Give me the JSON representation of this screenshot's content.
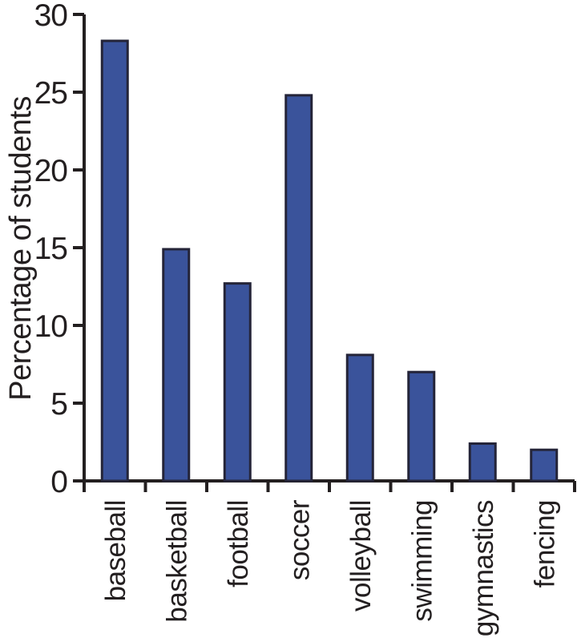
{
  "chart_data": {
    "type": "bar",
    "title": "",
    "xlabel": "",
    "ylabel": "Percentage of students",
    "categories": [
      "baseball",
      "basketball",
      "football",
      "soccer",
      "volleyball",
      "swimming",
      "gymnastics",
      "fencing"
    ],
    "values": [
      28.3,
      14.9,
      12.7,
      24.8,
      8.1,
      7.0,
      2.4,
      2.0
    ],
    "ylim": [
      0,
      30
    ],
    "yticks": [
      0,
      5,
      10,
      15,
      20,
      25,
      30
    ],
    "ytick_labels": [
      "0",
      "5",
      "10",
      "15",
      "20",
      "25",
      "30"
    ],
    "grid": "off",
    "legend": "none",
    "colors": {
      "bar_fill": "#3a539b",
      "bar_edge": "#242438",
      "axis": "#231f20",
      "background": "#ffffff"
    }
  }
}
